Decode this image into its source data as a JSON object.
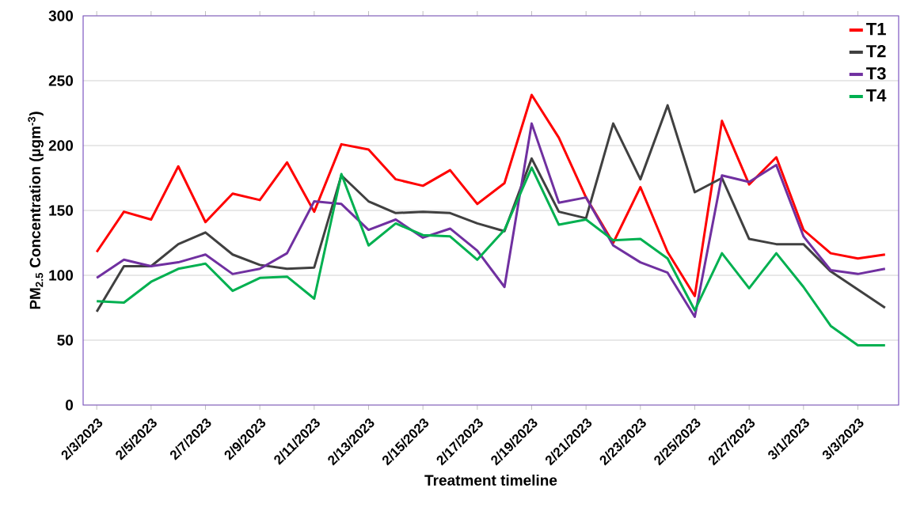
{
  "chart_data": {
    "type": "line",
    "xlabel": "Treatment timeline",
    "ylabel": "PM$_{2.5}$ Concentration (µgm$^{-3}$)",
    "categories": [
      "2/3/2023",
      null,
      "2/5/2023",
      null,
      "2/7/2023",
      null,
      "2/9/2023",
      null,
      "2/11/2023",
      null,
      "2/13/2023",
      null,
      "2/15/2023",
      null,
      "2/17/2023",
      null,
      "2/19/2023",
      null,
      "2/21/2023",
      null,
      "2/23/2023",
      null,
      "2/25/2023",
      null,
      "2/27/2023",
      null,
      "3/1/2023",
      null,
      "3/3/2023",
      null
    ],
    "series": [
      {
        "name": "T1",
        "color": "#ff0000",
        "values": [
          118,
          149,
          143,
          184,
          141,
          163,
          158,
          187,
          149,
          201,
          197,
          174,
          169,
          181,
          155,
          171,
          239,
          206,
          160,
          125,
          168,
          118,
          84,
          219,
          170,
          191,
          135,
          117,
          113,
          116
        ]
      },
      {
        "name": "T2",
        "color": "#404040",
        "values": [
          72,
          107,
          107,
          124,
          133,
          116,
          108,
          105,
          106,
          177,
          157,
          148,
          149,
          148,
          140,
          134,
          190,
          149,
          144,
          217,
          174,
          231,
          164,
          175,
          128,
          124,
          124,
          103,
          89,
          75
        ]
      },
      {
        "name": "T3",
        "color": "#7030a0",
        "values": [
          98,
          112,
          107,
          110,
          116,
          101,
          105,
          117,
          157,
          155,
          135,
          143,
          129,
          136,
          119,
          91,
          217,
          156,
          160,
          123,
          110,
          102,
          68,
          177,
          172,
          185,
          130,
          104,
          101,
          105
        ]
      },
      {
        "name": "T4",
        "color": "#00b050",
        "values": [
          80,
          79,
          95,
          105,
          109,
          88,
          98,
          99,
          82,
          178,
          123,
          140,
          131,
          130,
          112,
          135,
          183,
          139,
          143,
          127,
          128,
          113,
          73,
          117,
          90,
          117,
          91,
          61,
          46,
          46
        ]
      }
    ],
    "ylim": [
      0,
      300
    ],
    "yticks": [
      0,
      50,
      100,
      150,
      200,
      250,
      300
    ],
    "grid": "y",
    "legend": "top right",
    "marker": "none",
    "line_style": "solid"
  }
}
